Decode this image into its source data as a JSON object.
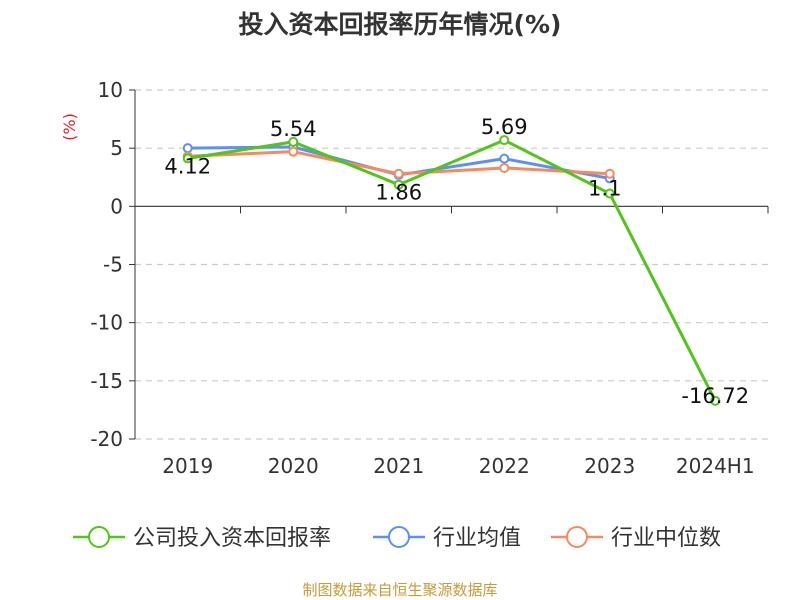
{
  "chart_data": {
    "type": "line",
    "title": "投入资本回报率历年情况(%)",
    "ylabel": "(%)",
    "categories": [
      "2019",
      "2020",
      "2021",
      "2022",
      "2023",
      "2024H1"
    ],
    "ylim": [
      -20,
      10
    ],
    "yticks": [
      10,
      5,
      0,
      -5,
      -10,
      -15,
      -20
    ],
    "grid": true,
    "legend_position": "bottom",
    "series": [
      {
        "name": "公司投入资本回报率",
        "color": "#52c41a",
        "values": [
          4.12,
          5.54,
          1.86,
          5.69,
          1.1,
          -16.72
        ],
        "labels": [
          "4.12",
          "5.54",
          "1.86",
          "5.69",
          "1.1",
          "-16.72"
        ]
      },
      {
        "name": "行业均值",
        "color": "#5b8ff9",
        "values": [
          5.0,
          5.1,
          2.7,
          4.1,
          2.4,
          null
        ]
      },
      {
        "name": "行业中位数",
        "color": "#f5895f",
        "values": [
          4.3,
          4.7,
          2.8,
          3.3,
          2.8,
          null
        ]
      }
    ]
  },
  "source": "制图数据来自恒生聚源数据库"
}
